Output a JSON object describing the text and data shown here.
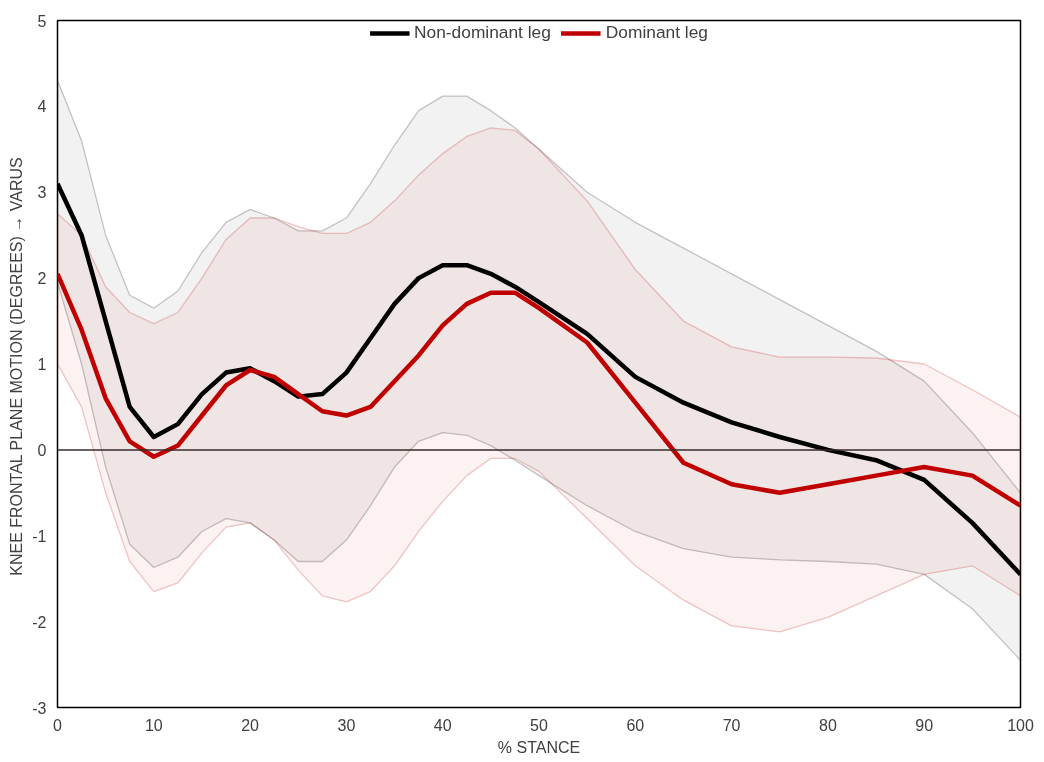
{
  "chart_data": {
    "type": "line",
    "xlabel": "% STANCE",
    "ylabel": "KNEE FRONTAL PLANE MOTION (DEGREES)  → VARUS",
    "x": [
      0,
      2.5,
      5,
      7.5,
      10,
      12.5,
      15,
      17.5,
      20,
      22.5,
      25,
      27.5,
      30,
      32.5,
      35,
      37.5,
      40,
      42.5,
      45,
      47.5,
      50,
      55,
      60,
      65,
      70,
      75,
      80,
      85,
      90,
      95,
      100
    ],
    "series": [
      {
        "name": "Non-dominant leg",
        "color": "#000000",
        "values": [
          3.1,
          2.5,
          1.5,
          0.5,
          0.15,
          0.3,
          0.65,
          0.9,
          0.95,
          0.8,
          0.62,
          0.65,
          0.9,
          1.3,
          1.7,
          2.0,
          2.15,
          2.15,
          2.05,
          1.9,
          1.72,
          1.35,
          0.85,
          0.55,
          0.32,
          0.15,
          0.0,
          -0.12,
          -0.35,
          -0.85,
          -1.45
        ],
        "upper": [
          4.3,
          3.6,
          2.5,
          1.8,
          1.65,
          1.85,
          2.3,
          2.65,
          2.8,
          2.7,
          2.55,
          2.55,
          2.7,
          3.1,
          3.55,
          3.95,
          4.12,
          4.12,
          3.95,
          3.75,
          3.5,
          3.0,
          2.65,
          2.35,
          2.05,
          1.75,
          1.45,
          1.15,
          0.8,
          0.2,
          -0.5
        ],
        "lower": [
          1.95,
          1.0,
          -0.2,
          -1.1,
          -1.37,
          -1.25,
          -0.95,
          -0.8,
          -0.85,
          -1.05,
          -1.3,
          -1.3,
          -1.05,
          -0.65,
          -0.2,
          0.1,
          0.2,
          0.17,
          0.05,
          -0.12,
          -0.3,
          -0.65,
          -0.95,
          -1.15,
          -1.25,
          -1.28,
          -1.3,
          -1.33,
          -1.45,
          -1.85,
          -2.45
        ]
      },
      {
        "name": "Dominant leg",
        "color": "#c00000",
        "values": [
          2.05,
          1.4,
          0.6,
          0.1,
          -0.08,
          0.05,
          0.4,
          0.75,
          0.93,
          0.85,
          0.65,
          0.45,
          0.4,
          0.5,
          0.8,
          1.1,
          1.45,
          1.7,
          1.83,
          1.83,
          1.65,
          1.25,
          0.55,
          -0.15,
          -0.4,
          -0.5,
          -0.4,
          -0.3,
          -0.2,
          -0.3,
          -0.65
        ],
        "upper": [
          2.75,
          2.5,
          1.9,
          1.6,
          1.47,
          1.6,
          2.0,
          2.45,
          2.7,
          2.7,
          2.6,
          2.52,
          2.52,
          2.65,
          2.9,
          3.2,
          3.45,
          3.65,
          3.75,
          3.72,
          3.5,
          2.9,
          2.1,
          1.5,
          1.2,
          1.08,
          1.08,
          1.07,
          1.0,
          0.7,
          0.38
        ],
        "lower": [
          1.0,
          0.5,
          -0.5,
          -1.3,
          -1.65,
          -1.55,
          -1.2,
          -0.9,
          -0.85,
          -1.05,
          -1.4,
          -1.7,
          -1.77,
          -1.65,
          -1.35,
          -0.95,
          -0.6,
          -0.3,
          -0.1,
          -0.1,
          -0.25,
          -0.8,
          -1.35,
          -1.75,
          -2.05,
          -2.12,
          -1.95,
          -1.7,
          -1.45,
          -1.35,
          -1.7
        ]
      }
    ],
    "xlim": [
      0,
      100
    ],
    "xticks": [
      0,
      10,
      20,
      30,
      40,
      50,
      60,
      70,
      80,
      90,
      100
    ],
    "ylim": [
      -3,
      5
    ],
    "yticks": [
      -3,
      -2,
      -1,
      0,
      1,
      2,
      3,
      4,
      5
    ],
    "ref_lines": [
      {
        "axis": "y",
        "value": 0,
        "color": "#3a2a2a"
      }
    ],
    "grid": false,
    "legend": "top",
    "marker": "none",
    "line_style": "solid"
  }
}
